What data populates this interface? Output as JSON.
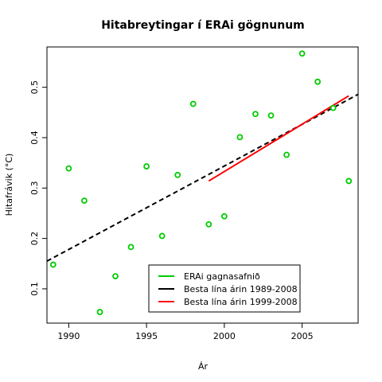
{
  "chart_data": {
    "type": "scatter",
    "title": "Hitabreytingar í ERAi gögnunum",
    "xlabel": "Ár",
    "ylabel": "Hitafrávik (°C)",
    "xlim": [
      1988.6,
      2008.6
    ],
    "ylim": [
      0.032,
      0.58
    ],
    "x_ticks": [
      1990,
      1995,
      2000,
      2005
    ],
    "y_ticks": [
      0.1,
      0.2,
      0.3,
      0.4,
      0.5
    ],
    "legend_position": "bottom-center",
    "series": [
      {
        "name": "ERAi gagnasafnið",
        "kind": "points",
        "color": "#00cc00",
        "x": [
          1989,
          1990,
          1991,
          1992,
          1993,
          1994,
          1995,
          1996,
          1997,
          1998,
          1999,
          2000,
          2001,
          2002,
          2003,
          2004,
          2005,
          2006,
          2007,
          2008
        ],
        "y": [
          0.148,
          0.339,
          0.275,
          0.054,
          0.125,
          0.183,
          0.343,
          0.205,
          0.326,
          0.467,
          0.228,
          0.244,
          0.401,
          0.447,
          0.444,
          0.366,
          0.567,
          0.511,
          0.459,
          0.314
        ]
      },
      {
        "name": "Besta lína árin 1989-2008",
        "kind": "line",
        "style": "dashed",
        "color": "#000000",
        "x": [
          1988.6,
          2008.6
        ],
        "y": [
          0.155,
          0.486
        ]
      },
      {
        "name": "Besta lína árin 1999-2008",
        "kind": "line",
        "style": "solid",
        "color": "#ff0000",
        "x": [
          1999,
          2008
        ],
        "y": [
          0.314,
          0.483
        ]
      }
    ]
  }
}
